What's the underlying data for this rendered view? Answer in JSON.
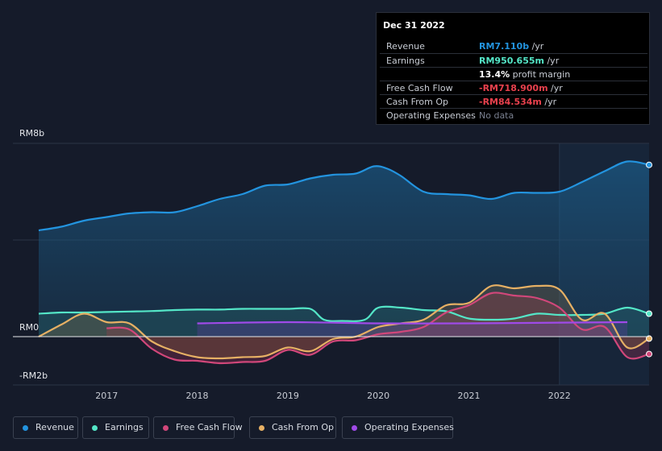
{
  "tooltip": {
    "date": "Dec 31 2022",
    "rows": [
      {
        "label": "Revenue",
        "value": "RM7.110b",
        "unit": " /yr",
        "color": "#2394df"
      },
      {
        "label": "Earnings",
        "value": "RM950.655m",
        "unit": " /yr",
        "color": "#54e6c7"
      },
      {
        "label": "",
        "value": "13.4%",
        "unit": " profit margin",
        "color": "#ffffff"
      },
      {
        "label": "Free Cash Flow",
        "value": "-RM718.900m",
        "unit": " /yr",
        "color": "#e8414d"
      },
      {
        "label": "Cash From Op",
        "value": "-RM84.534m",
        "unit": " /yr",
        "color": "#e8414d"
      },
      {
        "label": "Operating Expenses",
        "value": "No data",
        "unit": "",
        "color": "#7a8090"
      }
    ]
  },
  "legend": [
    {
      "label": "Revenue",
      "color": "#2394df"
    },
    {
      "label": "Earnings",
      "color": "#54e6c7"
    },
    {
      "label": "Free Cash Flow",
      "color": "#d1477a"
    },
    {
      "label": "Cash From Op",
      "color": "#e6b064"
    },
    {
      "label": "Operating Expenses",
      "color": "#9f4ae8"
    }
  ],
  "chart_data": {
    "type": "area",
    "y_tick_labels": [
      "RM8b",
      "RM0",
      "-RM2b"
    ],
    "ylim": [
      -2,
      8
    ],
    "x_tick_labels": [
      "2017",
      "2018",
      "2019",
      "2020",
      "2021",
      "2022"
    ],
    "x_ticks": [
      2017,
      2018,
      2019,
      2020,
      2021,
      2022
    ],
    "xlim": [
      2016.25,
      2022.99
    ],
    "forecast_start": 2022.0,
    "grid": true,
    "series": [
      {
        "name": "Revenue",
        "color": "#2394df",
        "x": [
          2016.25,
          2016.5,
          2016.75,
          2017.0,
          2017.25,
          2017.5,
          2017.75,
          2018.0,
          2018.25,
          2018.5,
          2018.75,
          2019.0,
          2019.25,
          2019.5,
          2019.75,
          2019.95,
          2020.1,
          2020.25,
          2020.5,
          2020.75,
          2021.0,
          2021.25,
          2021.5,
          2021.75,
          2022.0,
          2022.25,
          2022.5,
          2022.75,
          2022.99
        ],
        "values": [
          4.4,
          4.55,
          4.8,
          4.95,
          5.1,
          5.15,
          5.15,
          5.4,
          5.7,
          5.9,
          6.25,
          6.3,
          6.55,
          6.7,
          6.75,
          7.05,
          6.95,
          6.65,
          6.0,
          5.9,
          5.85,
          5.7,
          5.95,
          5.95,
          6.0,
          6.4,
          6.85,
          7.25,
          7.11
        ]
      },
      {
        "name": "Earnings",
        "color": "#54e6c7",
        "x": [
          2016.25,
          2016.5,
          2016.75,
          2017.0,
          2017.25,
          2017.5,
          2017.75,
          2018.0,
          2018.25,
          2018.5,
          2018.75,
          2019.0,
          2019.25,
          2019.4,
          2019.6,
          2019.85,
          2020.0,
          2020.25,
          2020.5,
          2020.75,
          2021.0,
          2021.25,
          2021.5,
          2021.75,
          2022.0,
          2022.25,
          2022.5,
          2022.75,
          2022.99
        ],
        "values": [
          0.95,
          1.0,
          1.0,
          1.02,
          1.04,
          1.06,
          1.1,
          1.12,
          1.12,
          1.15,
          1.15,
          1.15,
          1.15,
          0.7,
          0.65,
          0.7,
          1.2,
          1.2,
          1.1,
          1.05,
          0.75,
          0.7,
          0.75,
          0.95,
          0.9,
          0.9,
          0.95,
          1.2,
          0.95
        ]
      },
      {
        "name": "Free Cash Flow",
        "color": "#d1477a",
        "x": [
          2017.0,
          2017.25,
          2017.5,
          2017.75,
          2018.0,
          2018.25,
          2018.5,
          2018.75,
          2019.0,
          2019.25,
          2019.5,
          2019.75,
          2020.0,
          2020.25,
          2020.5,
          2020.75,
          2021.0,
          2021.25,
          2021.5,
          2021.75,
          2022.0,
          2022.25,
          2022.5,
          2022.75,
          2022.99
        ],
        "values": [
          0.35,
          0.3,
          -0.5,
          -0.95,
          -1.0,
          -1.1,
          -1.05,
          -1.0,
          -0.55,
          -0.75,
          -0.2,
          -0.15,
          0.1,
          0.2,
          0.4,
          1.0,
          1.3,
          1.8,
          1.7,
          1.6,
          1.2,
          0.3,
          0.4,
          -0.85,
          -0.72
        ]
      },
      {
        "name": "Cash From Op",
        "color": "#e6b064",
        "x": [
          2016.25,
          2016.5,
          2016.75,
          2017.0,
          2017.25,
          2017.5,
          2017.75,
          2018.0,
          2018.25,
          2018.5,
          2018.75,
          2019.0,
          2019.25,
          2019.5,
          2019.75,
          2020.0,
          2020.25,
          2020.5,
          2020.75,
          2021.0,
          2021.25,
          2021.5,
          2021.75,
          2022.0,
          2022.25,
          2022.5,
          2022.75,
          2022.99
        ],
        "values": [
          0.0,
          0.5,
          0.95,
          0.6,
          0.55,
          -0.2,
          -0.6,
          -0.85,
          -0.9,
          -0.85,
          -0.8,
          -0.45,
          -0.6,
          -0.1,
          0.0,
          0.4,
          0.55,
          0.7,
          1.3,
          1.4,
          2.1,
          2.0,
          2.1,
          1.95,
          0.7,
          0.95,
          -0.45,
          -0.08
        ]
      },
      {
        "name": "Operating Expenses",
        "color": "#9f4ae8",
        "x": [
          2018.0,
          2019.0,
          2020.0,
          2021.0,
          2022.0,
          2022.75
        ],
        "values": [
          0.55,
          0.6,
          0.55,
          0.55,
          0.58,
          0.6
        ]
      }
    ]
  }
}
